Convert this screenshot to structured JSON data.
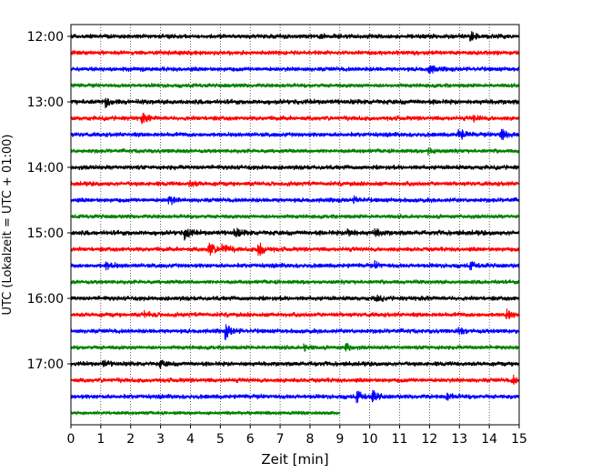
{
  "chart_data": {
    "type": "line",
    "xlabel": "Zeit  [min]",
    "ylabel": "UTC (Lokalzeit = UTC + 01:00)",
    "xlim": [
      0,
      15
    ],
    "x_ticks": [
      "0",
      "1",
      "2",
      "3",
      "4",
      "5",
      "6",
      "7",
      "8",
      "9",
      "10",
      "11",
      "12",
      "13",
      "14",
      "15"
    ],
    "y_ticks": [
      "12:00",
      "13:00",
      "14:00",
      "15:00",
      "16:00",
      "17:00"
    ],
    "grid": "vertical-dotted",
    "trace_minutes": 15,
    "series": [
      {
        "start": "12:00",
        "color": "#000000",
        "amplitude": 2.2,
        "end_min": 15,
        "events": [
          {
            "t": 8.3,
            "a": 3
          },
          {
            "t": 13.4,
            "a": 4
          }
        ]
      },
      {
        "start": "12:15",
        "color": "#ff0000",
        "amplitude": 2.2,
        "end_min": 15,
        "events": []
      },
      {
        "start": "12:30",
        "color": "#0000ff",
        "amplitude": 2.2,
        "end_min": 15,
        "events": [
          {
            "t": 12.0,
            "a": 4
          }
        ]
      },
      {
        "start": "12:45",
        "color": "#008000",
        "amplitude": 2.0,
        "end_min": 15,
        "events": []
      },
      {
        "start": "13:00",
        "color": "#000000",
        "amplitude": 2.4,
        "end_min": 15,
        "events": [
          {
            "t": 1.2,
            "a": 4
          }
        ]
      },
      {
        "start": "13:15",
        "color": "#ff0000",
        "amplitude": 2.2,
        "end_min": 15,
        "events": [
          {
            "t": 2.4,
            "a": 4
          },
          {
            "t": 13.5,
            "a": 3
          }
        ]
      },
      {
        "start": "13:30",
        "color": "#0000ff",
        "amplitude": 2.2,
        "end_min": 15,
        "events": [
          {
            "t": 13.0,
            "a": 6
          },
          {
            "t": 14.4,
            "a": 6
          }
        ]
      },
      {
        "start": "13:45",
        "color": "#008000",
        "amplitude": 2.0,
        "end_min": 15,
        "events": [
          {
            "t": 12.0,
            "a": 3
          }
        ]
      },
      {
        "start": "14:00",
        "color": "#000000",
        "amplitude": 2.2,
        "end_min": 15,
        "events": []
      },
      {
        "start": "14:15",
        "color": "#ff0000",
        "amplitude": 2.2,
        "end_min": 15,
        "events": [
          {
            "t": 4.0,
            "a": 3
          }
        ]
      },
      {
        "start": "14:30",
        "color": "#0000ff",
        "amplitude": 2.2,
        "end_min": 15,
        "events": [
          {
            "t": 3.3,
            "a": 4
          },
          {
            "t": 9.5,
            "a": 3
          }
        ]
      },
      {
        "start": "14:45",
        "color": "#008000",
        "amplitude": 2.0,
        "end_min": 15,
        "events": []
      },
      {
        "start": "15:00",
        "color": "#000000",
        "amplitude": 2.4,
        "end_min": 15,
        "events": [
          {
            "t": 3.8,
            "a": 6
          },
          {
            "t": 5.5,
            "a": 4
          },
          {
            "t": 9.3,
            "a": 4
          },
          {
            "t": 10.2,
            "a": 3
          }
        ]
      },
      {
        "start": "15:15",
        "color": "#ff0000",
        "amplitude": 2.2,
        "end_min": 15,
        "events": [
          {
            "t": 4.6,
            "a": 8
          },
          {
            "t": 5.1,
            "a": 6
          },
          {
            "t": 6.3,
            "a": 8
          }
        ]
      },
      {
        "start": "15:30",
        "color": "#0000ff",
        "amplitude": 2.2,
        "end_min": 15,
        "events": [
          {
            "t": 1.2,
            "a": 4
          },
          {
            "t": 10.2,
            "a": 3
          },
          {
            "t": 13.4,
            "a": 3
          }
        ]
      },
      {
        "start": "15:45",
        "color": "#008000",
        "amplitude": 2.0,
        "end_min": 15,
        "events": []
      },
      {
        "start": "16:00",
        "color": "#000000",
        "amplitude": 2.2,
        "end_min": 15,
        "events": [
          {
            "t": 10.2,
            "a": 3
          }
        ]
      },
      {
        "start": "16:15",
        "color": "#ff0000",
        "amplitude": 2.2,
        "end_min": 15,
        "events": [
          {
            "t": 2.5,
            "a": 3
          },
          {
            "t": 14.6,
            "a": 4
          }
        ]
      },
      {
        "start": "16:30",
        "color": "#0000ff",
        "amplitude": 2.2,
        "end_min": 15,
        "events": [
          {
            "t": 5.2,
            "a": 7
          },
          {
            "t": 13.0,
            "a": 3
          }
        ]
      },
      {
        "start": "16:45",
        "color": "#008000",
        "amplitude": 2.0,
        "end_min": 15,
        "events": [
          {
            "t": 7.8,
            "a": 3
          },
          {
            "t": 9.2,
            "a": 4
          }
        ]
      },
      {
        "start": "17:00",
        "color": "#000000",
        "amplitude": 2.2,
        "end_min": 15,
        "events": [
          {
            "t": 1.1,
            "a": 3
          },
          {
            "t": 3.0,
            "a": 3
          }
        ]
      },
      {
        "start": "17:15",
        "color": "#ff0000",
        "amplitude": 2.2,
        "end_min": 15,
        "events": [
          {
            "t": 14.8,
            "a": 4
          }
        ]
      },
      {
        "start": "17:30",
        "color": "#0000ff",
        "amplitude": 2.2,
        "end_min": 15,
        "events": [
          {
            "t": 9.6,
            "a": 5
          },
          {
            "t": 10.1,
            "a": 5
          },
          {
            "t": 12.6,
            "a": 3
          }
        ]
      },
      {
        "start": "17:45",
        "color": "#008000",
        "amplitude": 1.6,
        "end_min": 9,
        "events": []
      }
    ]
  }
}
